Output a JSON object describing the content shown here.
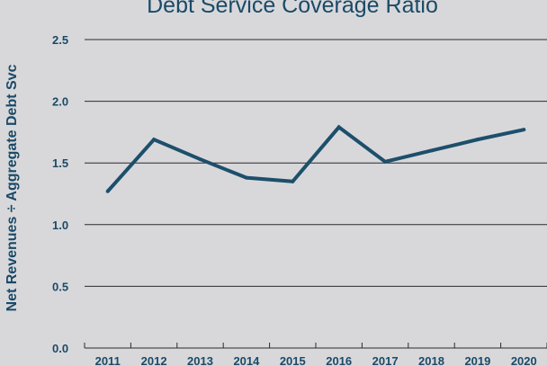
{
  "chart_data": {
    "type": "line",
    "title": "Debt Service Coverage Ratio",
    "xlabel": "",
    "ylabel": "Net Revenues ÷ Aggregate Debt Svc",
    "categories": [
      "2011",
      "2012",
      "2013",
      "2014",
      "2015",
      "2016",
      "2017",
      "2018",
      "2019",
      "2020"
    ],
    "series": [
      {
        "values": [
          1.27,
          1.69,
          1.53,
          1.38,
          1.35,
          1.79,
          1.51,
          1.6,
          1.69,
          1.77
        ]
      }
    ],
    "ylim": [
      0.0,
      2.5
    ],
    "yticks": [
      "0.0",
      "0.5",
      "1.0",
      "1.5",
      "2.0",
      "2.5"
    ],
    "grid": true,
    "colors": {
      "line": "#1d4f6b",
      "text": "#1a4a67",
      "grid": "#2b2b2b",
      "background": "#d8d8db"
    }
  }
}
